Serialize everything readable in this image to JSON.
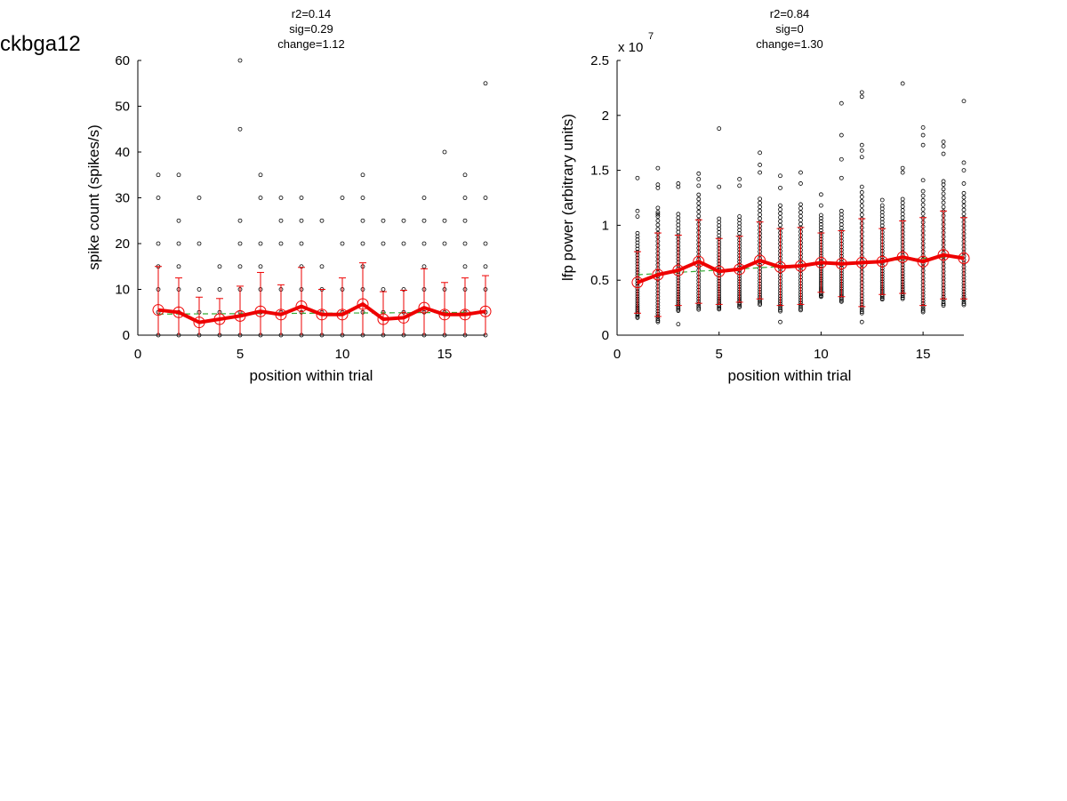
{
  "figure_label": "ckbga12",
  "chart_data": [
    {
      "type": "scatter",
      "stats": [
        "r2=0.14",
        "sig=0.29",
        "change=1.12"
      ],
      "xlabel": "position within trial",
      "ylabel": "spike count (spikes/s)",
      "xlim": [
        0,
        17
      ],
      "ylim": [
        0,
        60
      ],
      "x_ticks": [
        0,
        5,
        10,
        15
      ],
      "y_ticks": [
        0,
        10,
        20,
        30,
        40,
        50,
        60
      ],
      "y_multiplier": "",
      "colors": {
        "points": "#000000",
        "mean": "#ee0000",
        "fit": "#33aa33"
      },
      "points": [
        {
          "x": 1,
          "ys": [
            0,
            5,
            10,
            15,
            20,
            30,
            35
          ]
        },
        {
          "x": 2,
          "ys": [
            0,
            5,
            10,
            15,
            20,
            25,
            35
          ]
        },
        {
          "x": 3,
          "ys": [
            0,
            5,
            10,
            20,
            30
          ]
        },
        {
          "x": 4,
          "ys": [
            0,
            5,
            10,
            15
          ]
        },
        {
          "x": 5,
          "ys": [
            0,
            5,
            10,
            15,
            20,
            25,
            45,
            60
          ]
        },
        {
          "x": 6,
          "ys": [
            0,
            5,
            10,
            15,
            20,
            30,
            35
          ]
        },
        {
          "x": 7,
          "ys": [
            0,
            5,
            10,
            20,
            25,
            30
          ]
        },
        {
          "x": 8,
          "ys": [
            0,
            5,
            10,
            15,
            20,
            25,
            30
          ]
        },
        {
          "x": 9,
          "ys": [
            0,
            5,
            10,
            15,
            25
          ]
        },
        {
          "x": 10,
          "ys": [
            0,
            5,
            10,
            20,
            30
          ]
        },
        {
          "x": 11,
          "ys": [
            0,
            5,
            10,
            15,
            20,
            25,
            30,
            35
          ]
        },
        {
          "x": 12,
          "ys": [
            0,
            5,
            10,
            20,
            25
          ]
        },
        {
          "x": 13,
          "ys": [
            0,
            5,
            10,
            20,
            25
          ]
        },
        {
          "x": 14,
          "ys": [
            0,
            5,
            10,
            15,
            20,
            25,
            30
          ]
        },
        {
          "x": 15,
          "ys": [
            0,
            5,
            10,
            20,
            25,
            40
          ]
        },
        {
          "x": 16,
          "ys": [
            0,
            5,
            10,
            15,
            20,
            25,
            30,
            35
          ]
        },
        {
          "x": 17,
          "ys": [
            0,
            5,
            10,
            15,
            20,
            30,
            55
          ]
        }
      ],
      "mean": {
        "x": [
          1,
          2,
          3,
          4,
          5,
          6,
          7,
          8,
          9,
          10,
          11,
          12,
          13,
          14,
          15,
          16,
          17
        ],
        "y": [
          5.5,
          5.0,
          2.8,
          3.5,
          4.2,
          5.2,
          4.5,
          6.3,
          4.5,
          4.5,
          6.8,
          3.5,
          3.8,
          6.0,
          4.5,
          4.5,
          5.2
        ],
        "err": [
          9.5,
          7.5,
          5.5,
          4.5,
          6.5,
          8.5,
          6.5,
          8.5,
          5.5,
          8.0,
          9.0,
          6.0,
          6.0,
          8.5,
          7.0,
          8.0,
          7.8
        ]
      },
      "fit": {
        "x": [
          1,
          17
        ],
        "y": [
          4.6,
          5.0
        ]
      }
    },
    {
      "type": "scatter",
      "stats": [
        "r2=0.84",
        "sig=0",
        "change=1.30"
      ],
      "xlabel": "position within trial",
      "ylabel": "lfp power (arbitrary units)",
      "xlim": [
        0,
        17
      ],
      "ylim": [
        0,
        2.5
      ],
      "x_ticks": [
        0,
        5,
        10,
        15
      ],
      "y_ticks": [
        0,
        0.5,
        1,
        1.5,
        2,
        2.5
      ],
      "y_multiplier": {
        "base": "x 10",
        "exp": "7"
      },
      "colors": {
        "points": "#000000",
        "mean": "#ee0000",
        "fit": "#33aa33"
      },
      "points": [
        {
          "x": 1,
          "ys": [
            1.43,
            1.13,
            1.08
          ]
        },
        {
          "x": 2,
          "ys": [
            1.52,
            1.37,
            1.34,
            1.1
          ]
        },
        {
          "x": 3,
          "ys": [
            1.38,
            1.35,
            0.1
          ]
        },
        {
          "x": 4,
          "ys": [
            1.47,
            1.42,
            1.36
          ]
        },
        {
          "x": 5,
          "ys": [
            1.88,
            1.35
          ]
        },
        {
          "x": 6,
          "ys": [
            1.42,
            1.36
          ]
        },
        {
          "x": 7,
          "ys": [
            1.66,
            1.55,
            1.48
          ]
        },
        {
          "x": 8,
          "ys": [
            1.45,
            1.34,
            0.12
          ]
        },
        {
          "x": 9,
          "ys": [
            1.48,
            1.38
          ]
        },
        {
          "x": 10,
          "ys": [
            1.28,
            1.18
          ]
        },
        {
          "x": 11,
          "ys": [
            2.11,
            1.82,
            1.6,
            1.43
          ]
        },
        {
          "x": 12,
          "ys": [
            2.21,
            2.17,
            1.73,
            1.68,
            1.62,
            1.35,
            0.12
          ]
        },
        {
          "x": 13,
          "ys": [
            1.23,
            1.18
          ]
        },
        {
          "x": 14,
          "ys": [
            2.29,
            1.52,
            1.48
          ]
        },
        {
          "x": 15,
          "ys": [
            1.89,
            1.82,
            1.73,
            1.41
          ]
        },
        {
          "x": 16,
          "ys": [
            1.76,
            1.72,
            1.65,
            1.4
          ]
        },
        {
          "x": 17,
          "ys": [
            2.13,
            1.57,
            1.5,
            1.38
          ]
        }
      ],
      "mean": {
        "x": [
          1,
          2,
          3,
          4,
          5,
          6,
          7,
          8,
          9,
          10,
          11,
          12,
          13,
          14,
          15,
          16,
          17
        ],
        "y": [
          0.48,
          0.55,
          0.59,
          0.67,
          0.58,
          0.6,
          0.68,
          0.62,
          0.63,
          0.66,
          0.65,
          0.66,
          0.67,
          0.71,
          0.67,
          0.73,
          0.7
        ],
        "err": [
          0.28,
          0.38,
          0.32,
          0.38,
          0.3,
          0.3,
          0.35,
          0.35,
          0.35,
          0.27,
          0.3,
          0.4,
          0.3,
          0.33,
          0.4,
          0.4,
          0.37
        ]
      },
      "fit": {
        "x": [
          1,
          17
        ],
        "y": [
          0.55,
          0.72
        ]
      }
    }
  ]
}
